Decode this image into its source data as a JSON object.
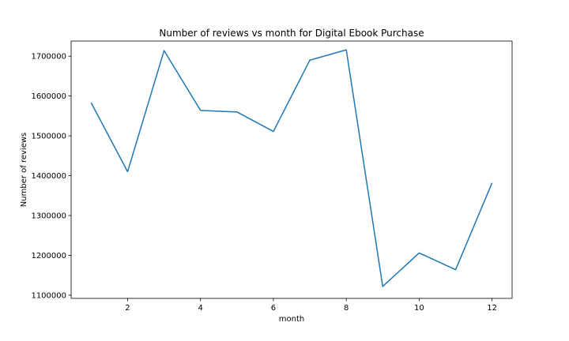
{
  "chart_data": {
    "type": "line",
    "title": "Number of reviews vs month for Digital Ebook Purchase",
    "xlabel": "month",
    "ylabel": "Number of reviews",
    "x": [
      1,
      2,
      3,
      4,
      5,
      6,
      7,
      8,
      9,
      10,
      11,
      12
    ],
    "series": [
      {
        "values": [
          1583000,
          1410000,
          1714000,
          1564000,
          1560000,
          1511000,
          1690000,
          1716000,
          1122000,
          1206000,
          1164000,
          1382000
        ],
        "color": "#1f77b4"
      }
    ],
    "xlim": [
      0.45,
      12.55
    ],
    "ylim": [
      1092000,
      1738000
    ],
    "xticks": [
      2,
      4,
      6,
      8,
      10,
      12
    ],
    "yticks": [
      1100000,
      1200000,
      1300000,
      1400000,
      1500000,
      1600000,
      1700000
    ],
    "grid": false,
    "legend": "none"
  }
}
